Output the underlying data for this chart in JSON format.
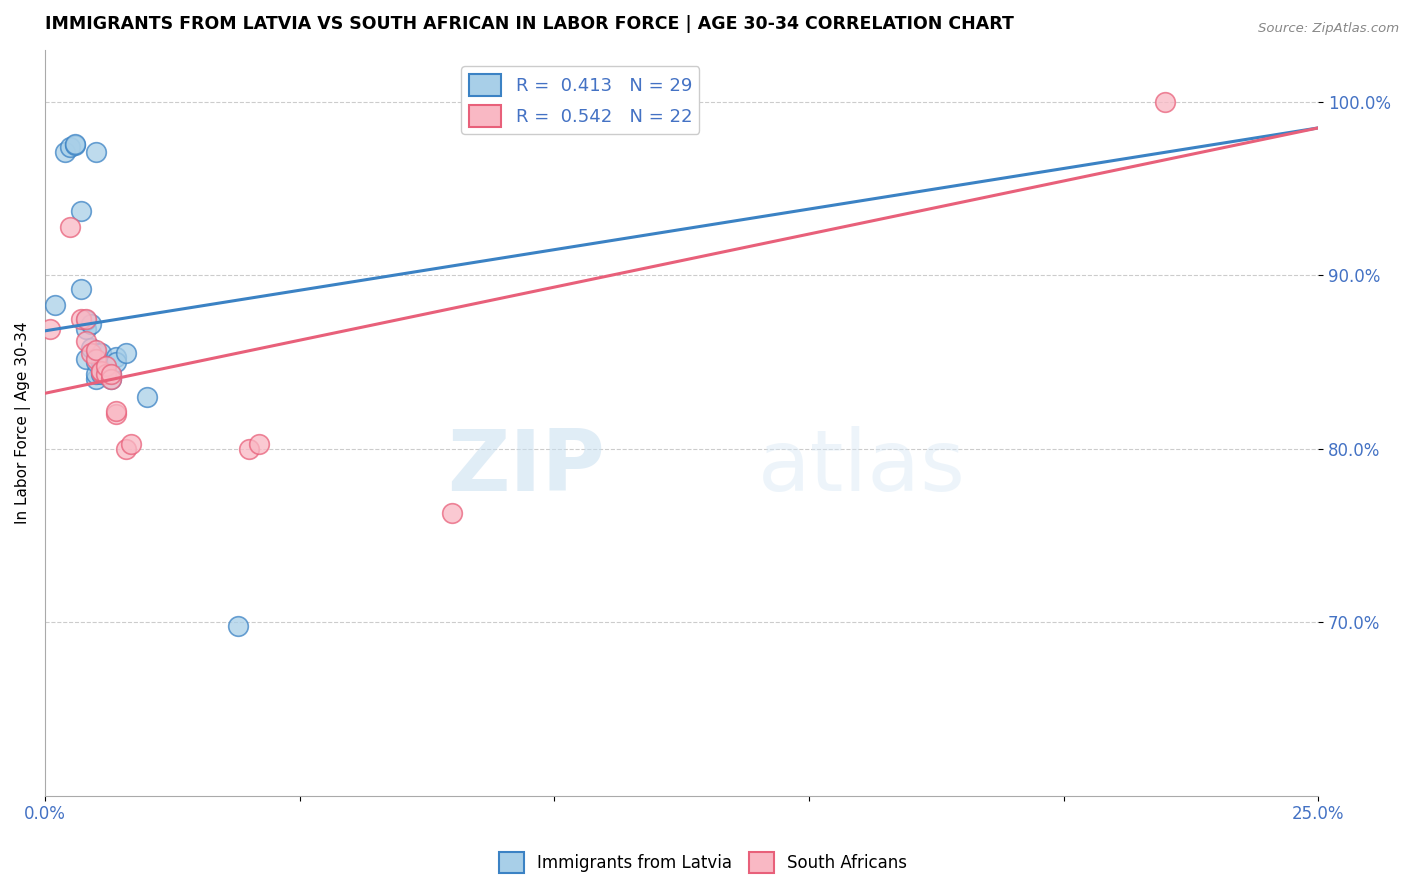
{
  "title": "IMMIGRANTS FROM LATVIA VS SOUTH AFRICAN IN LABOR FORCE | AGE 30-34 CORRELATION CHART",
  "source": "Source: ZipAtlas.com",
  "ylabel": "In Labor Force | Age 30-34",
  "xlim": [
    0.0,
    0.25
  ],
  "ylim": [
    0.6,
    1.03
  ],
  "xticks": [
    0.0,
    0.05,
    0.1,
    0.15,
    0.2,
    0.25
  ],
  "xticklabels": [
    "0.0%",
    "",
    "",
    "",
    "",
    "25.0%"
  ],
  "yticks": [
    0.7,
    0.8,
    0.9,
    1.0
  ],
  "yticklabels": [
    "70.0%",
    "80.0%",
    "90.0%",
    "100.0%"
  ],
  "latvia_R": "0.413",
  "latvia_N": "29",
  "sa_R": "0.542",
  "sa_N": "22",
  "latvia_color": "#a8cfe8",
  "sa_color": "#f9b8c4",
  "latvia_line_color": "#3b82c4",
  "sa_line_color": "#e8607a",
  "watermark_zip": "ZIP",
  "watermark_atlas": "atlas",
  "latvia_x": [
    0.002,
    0.004,
    0.005,
    0.006,
    0.006,
    0.007,
    0.007,
    0.008,
    0.008,
    0.008,
    0.009,
    0.009,
    0.01,
    0.01,
    0.01,
    0.01,
    0.011,
    0.011,
    0.011,
    0.012,
    0.012,
    0.013,
    0.013,
    0.014,
    0.014,
    0.016,
    0.02,
    0.038,
    0.01
  ],
  "latvia_y": [
    0.883,
    0.971,
    0.974,
    0.975,
    0.976,
    0.892,
    0.937,
    0.869,
    0.874,
    0.852,
    0.858,
    0.872,
    0.855,
    0.84,
    0.843,
    0.85,
    0.843,
    0.85,
    0.855,
    0.843,
    0.847,
    0.843,
    0.84,
    0.853,
    0.85,
    0.855,
    0.83,
    0.698,
    0.971
  ],
  "sa_x": [
    0.001,
    0.005,
    0.007,
    0.008,
    0.008,
    0.009,
    0.01,
    0.01,
    0.011,
    0.011,
    0.012,
    0.012,
    0.013,
    0.013,
    0.014,
    0.014,
    0.016,
    0.017,
    0.04,
    0.042,
    0.08,
    0.22
  ],
  "sa_y": [
    0.869,
    0.928,
    0.875,
    0.862,
    0.875,
    0.855,
    0.852,
    0.857,
    0.844,
    0.845,
    0.843,
    0.848,
    0.84,
    0.843,
    0.82,
    0.822,
    0.8,
    0.803,
    0.8,
    0.803,
    0.763,
    1.0
  ],
  "latvia_trendline_x0": 0.0,
  "latvia_trendline_y0": 0.868,
  "latvia_trendline_x1": 0.25,
  "latvia_trendline_y1": 0.985,
  "sa_trendline_x0": 0.0,
  "sa_trendline_y0": 0.832,
  "sa_trendline_x1": 0.25,
  "sa_trendline_y1": 0.985
}
